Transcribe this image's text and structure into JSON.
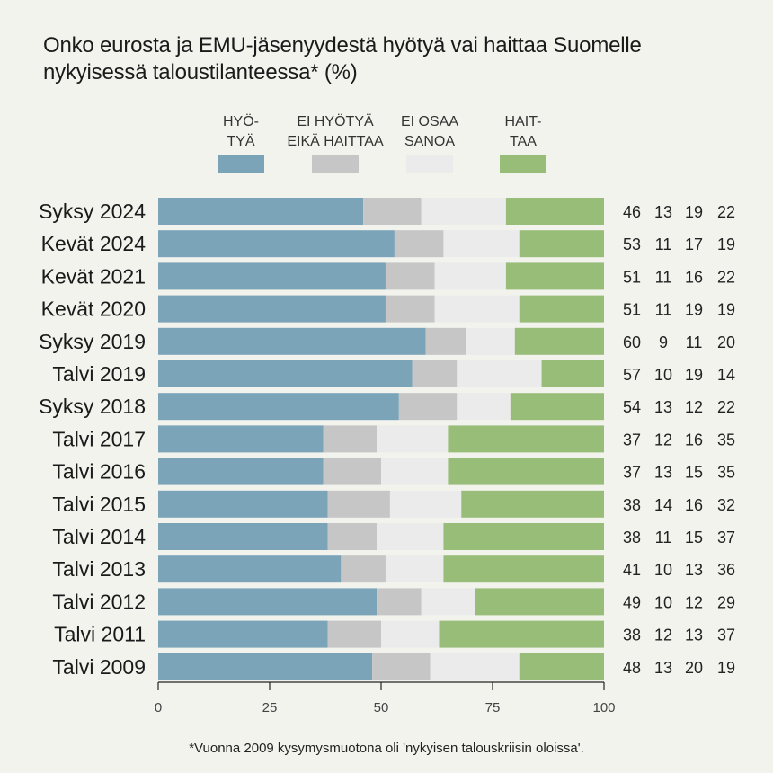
{
  "title_lines": [
    "Onko eurosta ja EMU-jäsenyydestä hyötyä vai haittaa Suomelle",
    "nykyisessä taloustilanteessa* (%)"
  ],
  "footnote": "*Vuonna 2009 kysymysmuotona oli 'nykyisen talouskriisin oloissa'.",
  "chart_data": {
    "type": "bar",
    "orientation": "horizontal",
    "stacked": true,
    "title": "Onko eurosta ja EMU-jäsenyydestä hyötyä vai haittaa Suomelle nykyisessä taloustilanteessa* (%)",
    "xlabel": "",
    "ylabel": "",
    "xlim": [
      0,
      100
    ],
    "xticks": [
      0,
      25,
      50,
      75,
      100
    ],
    "grid": false,
    "legend_position": "top",
    "categories": [
      "Syksy 2024",
      "Kevät 2024",
      "Kevät 2021",
      "Kevät 2020",
      "Syksy 2019",
      "Talvi 2019",
      "Syksy 2018",
      "Talvi 2017",
      "Talvi 2016",
      "Talvi 2015",
      "Talvi 2014",
      "Talvi 2013",
      "Talvi 2012",
      "Talvi 2011",
      "Talvi 2009"
    ],
    "series": [
      {
        "name": "HYÖTYÄ",
        "legend_lines": [
          "HYÖ-",
          "TYÄ"
        ],
        "color": "#7ba4b9",
        "values": [
          46,
          53,
          51,
          51,
          60,
          57,
          54,
          37,
          37,
          38,
          38,
          41,
          49,
          38,
          48
        ]
      },
      {
        "name": "EI HYÖTYÄ EIKÄ HAITTAA",
        "legend_lines": [
          "EI HYÖTYÄ",
          "EIKÄ HAITTAA"
        ],
        "color": "#c6c6c6",
        "values": [
          13,
          11,
          11,
          11,
          9,
          10,
          13,
          12,
          13,
          14,
          11,
          10,
          10,
          12,
          13
        ]
      },
      {
        "name": "EI OSAA SANOA",
        "legend_lines": [
          "EI OSAA",
          "SANOA"
        ],
        "color": "#ebebeb",
        "values": [
          19,
          17,
          16,
          19,
          11,
          19,
          12,
          16,
          15,
          16,
          15,
          13,
          12,
          13,
          20
        ]
      },
      {
        "name": "HAITTAA",
        "legend_lines": [
          "HAIT-",
          "TAA"
        ],
        "color": "#98bd79",
        "values": [
          22,
          19,
          22,
          19,
          20,
          14,
          22,
          35,
          35,
          32,
          37,
          36,
          29,
          37,
          19
        ]
      }
    ]
  }
}
